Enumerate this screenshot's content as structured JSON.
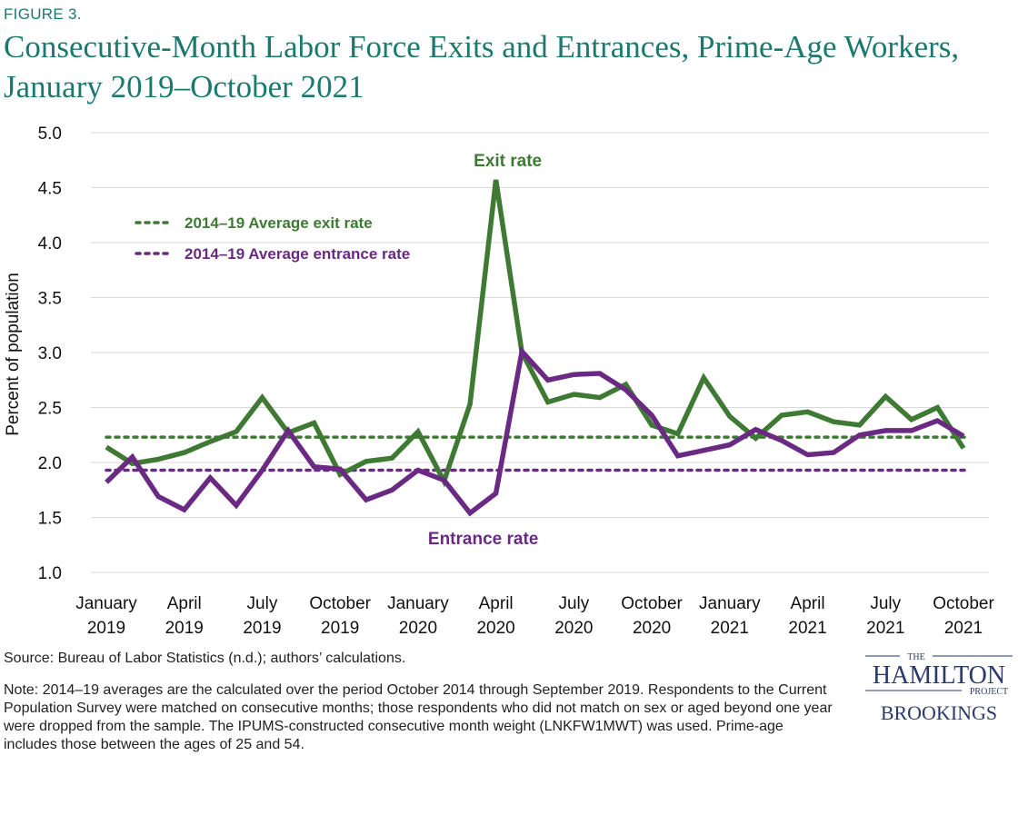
{
  "figure_label": "FIGURE 3.",
  "title": "Consecutive-Month Labor Force Exits and Entrances, Prime-Age Workers, January 2019–October 2021",
  "source": "Source: Bureau of Labor Statistics (n.d.); authors’ calculations.",
  "note": "Note: 2014–19 averages are the calculated over the period October 2014 through September 2019. Respondents to the Current Population Survey were matched on consecutive months; those respondents who did not match on sex or aged beyond one year were dropped from the sample. The IPUMS-constructed consecutive month weight (LNKFW1MWT) was used. Prime-age includes those between the ages of 25 and 54.",
  "logo": {
    "the": "THE",
    "hamilton": "HAMILTON",
    "project": "PROJECT",
    "brookings": "BROOKINGS"
  },
  "colors": {
    "exit": "#3f7a34",
    "entrance": "#6a2a84",
    "title": "#1a7a6e",
    "grid": "#d9d9d9"
  },
  "chart_data": {
    "type": "line",
    "ylabel": "Percent of population",
    "ylim": [
      1.0,
      5.0
    ],
    "yticks": [
      1.0,
      1.5,
      2.0,
      2.5,
      3.0,
      3.5,
      4.0,
      4.5,
      5.0
    ],
    "ytick_labels": [
      "1.0",
      "1.5",
      "2.0",
      "2.5",
      "3.0",
      "3.5",
      "4.0",
      "4.5",
      "5.0"
    ],
    "grid": true,
    "x_count": 34,
    "x_ticks": [
      {
        "index": 0,
        "line1": "January",
        "line2": "2019"
      },
      {
        "index": 3,
        "line1": "April",
        "line2": "2019"
      },
      {
        "index": 6,
        "line1": "July",
        "line2": "2019"
      },
      {
        "index": 9,
        "line1": "October",
        "line2": "2019"
      },
      {
        "index": 12,
        "line1": "January",
        "line2": "2020"
      },
      {
        "index": 15,
        "line1": "April",
        "line2": "2020"
      },
      {
        "index": 18,
        "line1": "July",
        "line2": "2020"
      },
      {
        "index": 21,
        "line1": "October",
        "line2": "2020"
      },
      {
        "index": 24,
        "line1": "January",
        "line2": "2021"
      },
      {
        "index": 27,
        "line1": "April",
        "line2": "2021"
      },
      {
        "index": 30,
        "line1": "July",
        "line2": "2021"
      },
      {
        "index": 33,
        "line1": "October",
        "line2": "2021"
      }
    ],
    "series": [
      {
        "name": "Exit rate",
        "key": "exit",
        "values": [
          2.14,
          1.99,
          2.03,
          2.09,
          2.19,
          2.28,
          2.59,
          2.27,
          2.36,
          1.89,
          2.01,
          2.04,
          2.28,
          1.83,
          2.53,
          4.57,
          3.0,
          2.55,
          2.62,
          2.59,
          2.71,
          2.34,
          2.26,
          2.77,
          2.42,
          2.22,
          2.43,
          2.46,
          2.37,
          2.34,
          2.6,
          2.39,
          2.5,
          2.13
        ]
      },
      {
        "name": "Entrance rate",
        "key": "entrance",
        "values": [
          1.82,
          2.05,
          1.69,
          1.57,
          1.86,
          1.61,
          1.93,
          2.29,
          1.96,
          1.94,
          1.66,
          1.75,
          1.93,
          1.84,
          1.54,
          1.72,
          3.01,
          2.75,
          2.8,
          2.81,
          2.66,
          2.43,
          2.06,
          2.11,
          2.16,
          2.3,
          2.2,
          2.07,
          2.09,
          2.25,
          2.29,
          2.29,
          2.38,
          2.24
        ]
      }
    ],
    "reference_lines": [
      {
        "name": "2014–19 Average exit rate",
        "key": "exit",
        "value": 2.23
      },
      {
        "name": "2014–19 Average entrance rate",
        "key": "entrance",
        "value": 1.93
      }
    ],
    "annotations": [
      {
        "text": "Exit rate",
        "key": "exit",
        "near_index": 15,
        "position": "above peak"
      },
      {
        "text": "Entrance rate",
        "key": "entrance",
        "near_index": 15,
        "position": "below trough"
      }
    ],
    "legend_position": "top-left"
  }
}
